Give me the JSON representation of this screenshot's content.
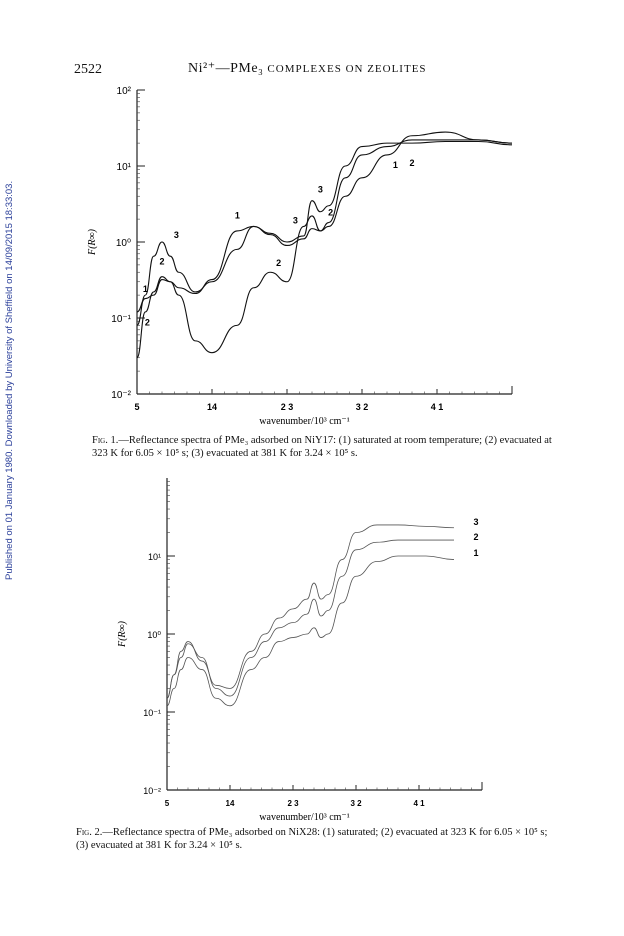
{
  "header": {
    "page_number": "2522",
    "running_head_main": "Ni²⁺—PMe₃",
    "running_head_rest": "COMPLEXES ON ZEOLITES"
  },
  "side_note": "Published on 01 January 1980. Downloaded by University of Sheffield on 14/09/2015 18:33:03.",
  "figure1": {
    "ylabel": "F(R∞)",
    "xlabel": "wavenumber/10³ cm⁻¹",
    "yticks": [
      "10²",
      "10¹",
      "10⁰",
      "10⁻¹",
      "10⁻²"
    ],
    "xticks": [
      "5",
      "14",
      "2 3",
      "3 2",
      "4 1"
    ],
    "caption_label": "Fig. 1.",
    "caption_text": "—Reflectance spectra of PMe₃ adsorbed on NiY17: (1) saturated at room temperature; (2)",
    "caption_text2": "evacuated at 323 K for 6.05 × 10⁵ s; (3) evacuated at 381 K for 3.24 × 10⁵ s."
  },
  "figure2": {
    "ylabel": "F(R∞)",
    "xlabel": "wavenumber/10³ cm⁻¹",
    "yticks": [
      "10¹",
      "10⁰",
      "10⁻¹",
      "10⁻²"
    ],
    "xticks": [
      "5",
      "14",
      "2 3",
      "3 2",
      "4 1"
    ],
    "caption_label": "Fig. 2.",
    "caption_text": "—Reflectance spectra of PMe₃ adsorbed on NiX28: (1) saturated; (2) evacuated at 323 K for",
    "caption_text2": "6.05 × 10⁵ s; (3) evacuated at 381 K for 3.24 × 10⁵ s."
  },
  "chart_data": [
    {
      "type": "line",
      "xlabel": "wavenumber/10³ cm⁻¹",
      "ylabel": "F(R∞)",
      "y_scale": "log",
      "ylim": [
        0.01,
        100
      ],
      "xlim": [
        5,
        50
      ],
      "xticks": [
        5,
        14,
        23,
        32,
        41
      ],
      "series": [
        {
          "name": "1",
          "x": [
            5,
            6,
            7,
            8,
            9,
            10,
            12,
            14,
            17,
            19,
            21,
            23,
            25,
            26,
            27,
            28,
            30,
            32,
            35,
            38,
            42,
            46,
            50
          ],
          "y": [
            0.12,
            0.18,
            0.2,
            0.32,
            0.3,
            0.25,
            0.21,
            0.32,
            1.4,
            1.6,
            1.25,
            0.9,
            1.1,
            1.5,
            1.4,
            1.8,
            7.0,
            14,
            18,
            22,
            22,
            22,
            20
          ]
        },
        {
          "name": "2",
          "x": [
            5,
            6,
            7,
            8,
            9,
            10,
            12,
            14,
            17,
            19,
            21,
            23,
            25,
            26,
            27,
            28,
            30,
            32,
            35,
            38,
            42,
            46,
            50
          ],
          "y": [
            0.03,
            0.12,
            0.22,
            0.35,
            0.3,
            0.2,
            0.05,
            0.035,
            0.08,
            0.25,
            0.4,
            0.3,
            1.6,
            2.2,
            1.4,
            1.6,
            4.0,
            7.0,
            14,
            25,
            28,
            22,
            20
          ]
        },
        {
          "name": "3",
          "x": [
            5,
            6,
            7,
            8,
            9,
            10,
            12,
            14,
            17,
            19,
            21,
            23,
            25,
            26,
            27,
            28,
            30,
            32,
            35,
            38,
            42,
            46,
            50
          ],
          "y": [
            0.08,
            0.2,
            0.65,
            1.0,
            0.65,
            0.4,
            0.22,
            0.3,
            0.8,
            1.6,
            1.3,
            1.0,
            1.2,
            3.5,
            2.5,
            3.0,
            10,
            18,
            20,
            20,
            21,
            21,
            19
          ]
        }
      ],
      "labels": [
        "1",
        "2",
        "3"
      ]
    },
    {
      "type": "line",
      "xlabel": "wavenumber/10³ cm⁻¹",
      "ylabel": "F(R∞)",
      "y_scale": "log",
      "ylim": [
        0.01,
        100
      ],
      "xlim": [
        5,
        50
      ],
      "xticks": [
        5,
        14,
        23,
        32,
        41
      ],
      "series": [
        {
          "name": "1",
          "x": [
            5,
            6,
            7,
            8,
            10,
            12,
            14,
            17,
            19,
            21,
            23,
            25,
            26,
            27,
            28,
            30,
            32,
            35,
            38,
            42,
            46
          ],
          "y": [
            0.12,
            0.2,
            0.35,
            0.5,
            0.35,
            0.15,
            0.12,
            0.35,
            0.5,
            0.8,
            0.9,
            1.0,
            1.2,
            0.9,
            1.0,
            2.5,
            5.5,
            8.5,
            10,
            10,
            9
          ]
        },
        {
          "name": "2",
          "x": [
            5,
            6,
            7,
            8,
            10,
            12,
            14,
            17,
            19,
            21,
            23,
            25,
            26,
            27,
            28,
            30,
            32,
            35,
            38,
            42,
            46
          ],
          "y": [
            0.15,
            0.3,
            0.5,
            0.75,
            0.5,
            0.2,
            0.16,
            0.5,
            0.8,
            1.2,
            1.4,
            1.8,
            2.8,
            1.7,
            2.0,
            5.5,
            12,
            15,
            16,
            16,
            16
          ]
        },
        {
          "name": "3",
          "x": [
            5,
            6,
            7,
            8,
            10,
            12,
            14,
            17,
            19,
            21,
            23,
            25,
            26,
            27,
            28,
            30,
            32,
            35,
            38,
            42,
            46
          ],
          "y": [
            0.15,
            0.3,
            0.6,
            0.8,
            0.45,
            0.22,
            0.2,
            0.6,
            1.0,
            1.6,
            2.1,
            2.8,
            4.5,
            2.8,
            3.2,
            9.0,
            20,
            25,
            25,
            24,
            23
          ]
        }
      ],
      "labels": [
        "1",
        "2",
        "3"
      ]
    }
  ]
}
